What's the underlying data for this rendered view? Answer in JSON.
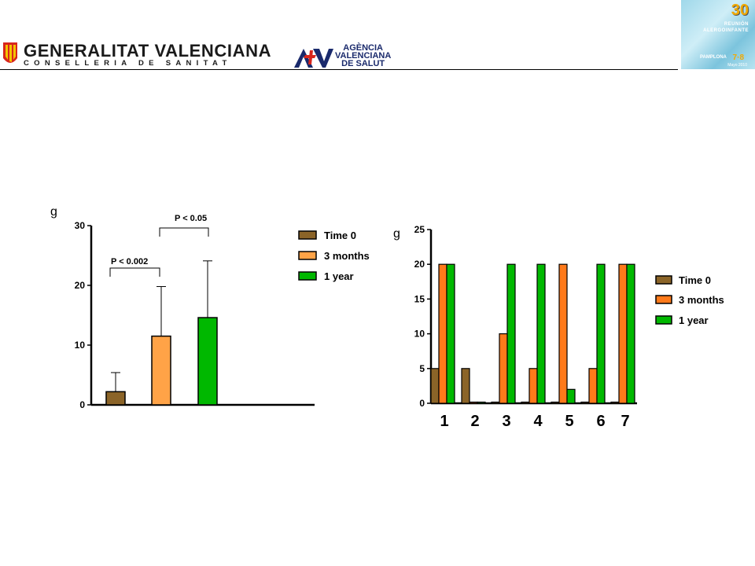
{
  "header": {
    "gv_title": "GENERALITAT VALENCIANA",
    "gv_subtitle": "CONSELLERIA DE SANITAT",
    "avs_line1": "AGÈNCIA",
    "avs_line2": "VALENCIANA",
    "avs_line3": "DE SALUT",
    "badge_number": "30",
    "badge_line1": "REUNIÓN",
    "badge_line2": "ALERGOINFANTE",
    "badge_line3": "PAMPLONA",
    "badge_line4": "7·8",
    "badge_line5": "Mayo 2010"
  },
  "colors": {
    "time0": "#8B6428",
    "months3_left": "#FFA347",
    "months3_right": "#FF7A1A",
    "year1": "#00B800"
  },
  "chart_data": [
    {
      "type": "bar",
      "ylabel": "g",
      "ylim": [
        0,
        30
      ],
      "yticks": [
        0,
        10,
        20,
        30
      ],
      "series": [
        {
          "name": "Time 0",
          "values": [
            2.2
          ],
          "error": [
            3.2
          ]
        },
        {
          "name": "3 months",
          "values": [
            11.5
          ],
          "error": [
            8.3
          ]
        },
        {
          "name": "1 year",
          "values": [
            14.6
          ],
          "error": [
            9.5
          ]
        }
      ],
      "annotations": [
        {
          "text": "P < 0.002",
          "between": [
            "Time 0",
            "3 months"
          ]
        },
        {
          "text": "P < 0.05",
          "between": [
            "3 months",
            "1 year"
          ]
        }
      ],
      "legend": "top-right"
    },
    {
      "type": "bar",
      "ylabel": "g",
      "ylim": [
        0,
        25
      ],
      "yticks": [
        0,
        5,
        10,
        15,
        20,
        25
      ],
      "categories": [
        "1",
        "2",
        "3",
        "4",
        "5",
        "6",
        "7"
      ],
      "series": [
        {
          "name": "Time 0",
          "values": [
            5,
            5,
            0,
            0,
            0,
            0,
            0
          ]
        },
        {
          "name": "3 months",
          "values": [
            20,
            0,
            10,
            5,
            20,
            5,
            20
          ]
        },
        {
          "name": "1 year",
          "values": [
            20,
            0,
            20,
            20,
            2,
            20,
            20
          ]
        }
      ],
      "legend": "right"
    }
  ]
}
